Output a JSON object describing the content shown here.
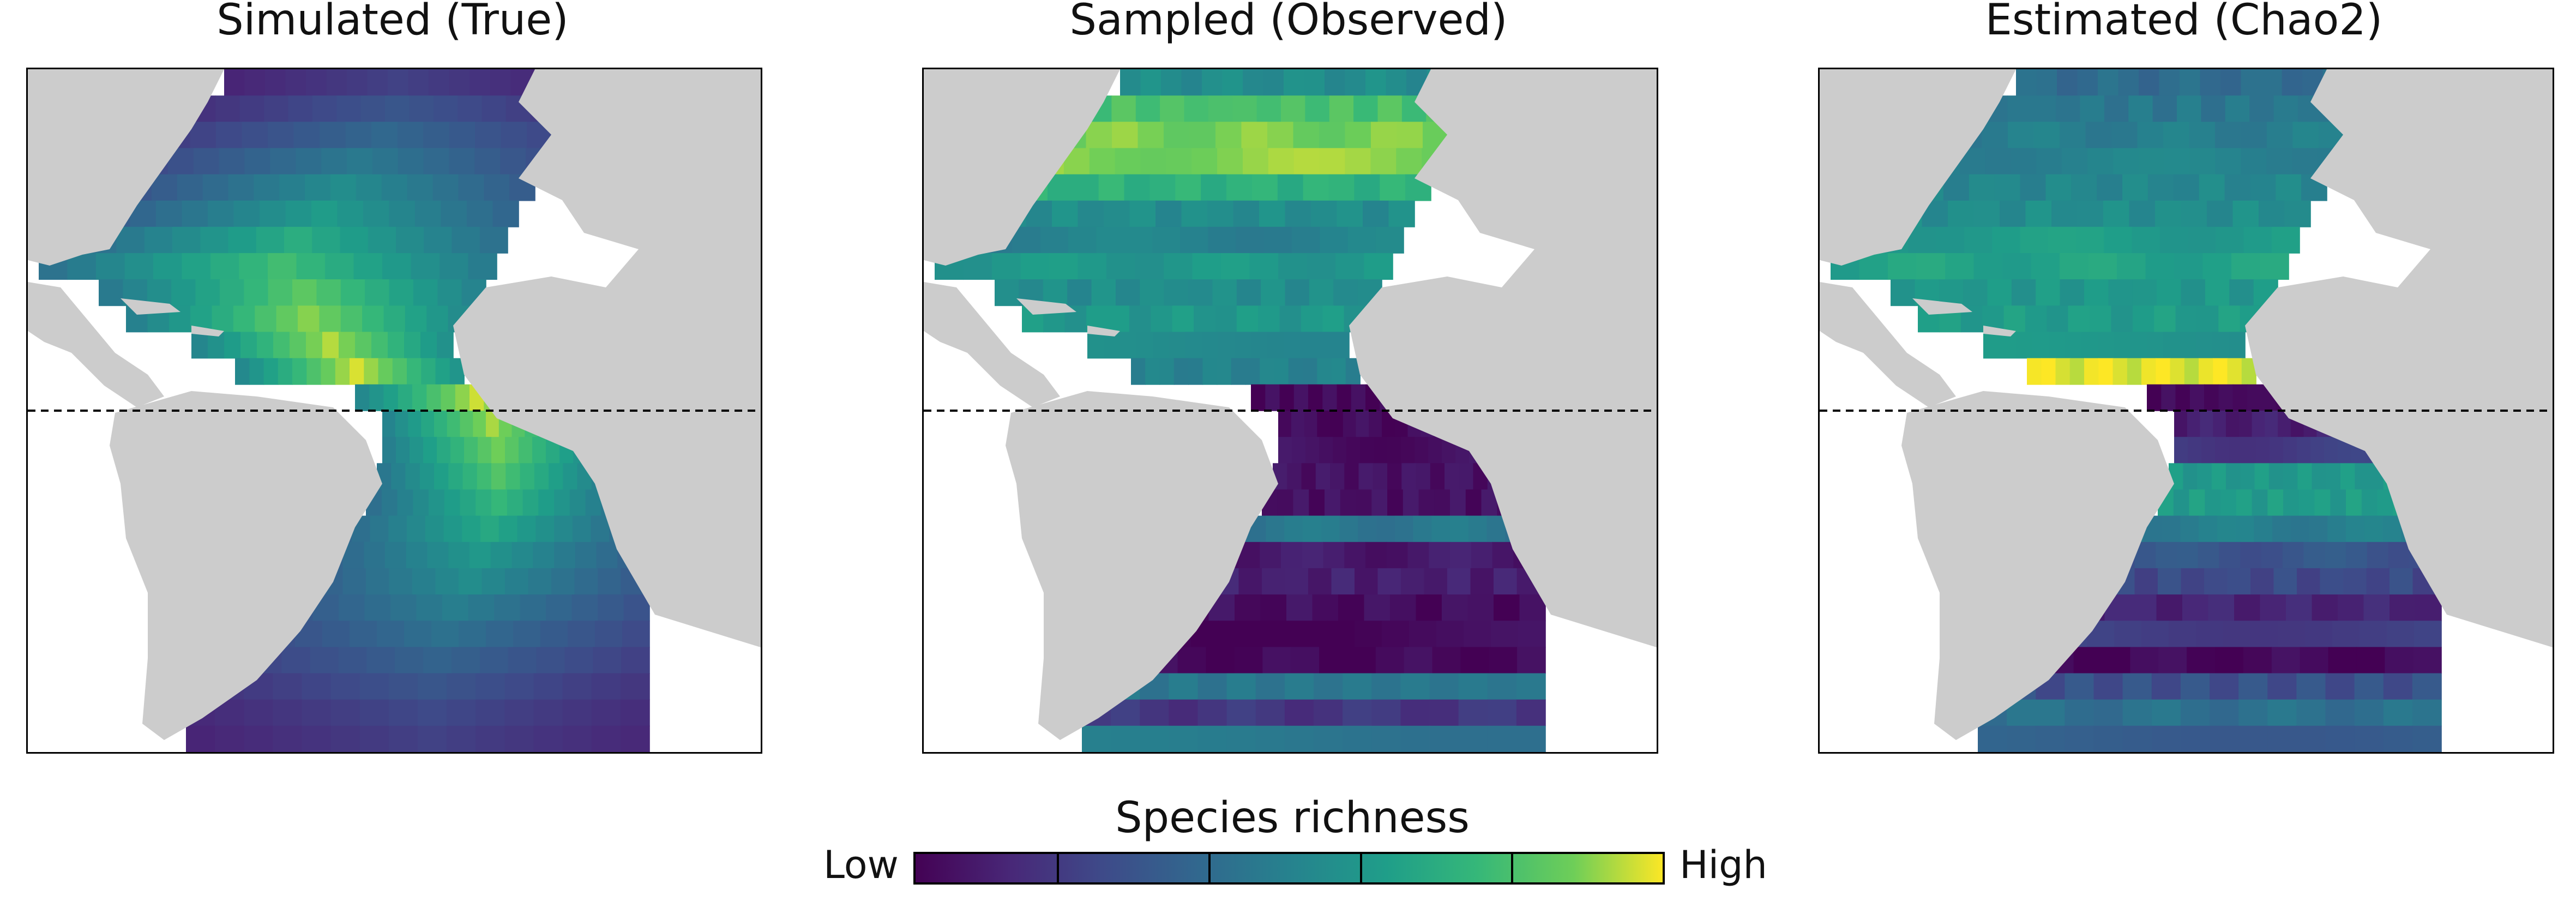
{
  "panels": [
    {
      "title": "Simulated (True)"
    },
    {
      "title": "Sampled (Observed)"
    },
    {
      "title": "Estimated (Chao2)"
    }
  ],
  "legend": {
    "title": "Species richness",
    "low_label": "Low",
    "high_label": "High",
    "colormap": "viridis"
  },
  "map": {
    "region": "Atlantic Ocean",
    "equator_line": "dashed",
    "land_color": "#cccccc",
    "ocean_color": "#ffffff",
    "grid_rows": 26
  },
  "chart_data": {
    "type": "heatmap",
    "series": [
      {
        "panel": "Simulated (True)",
        "row_profile": [
          0.22,
          0.3,
          0.38,
          0.46,
          0.55,
          0.62,
          0.7,
          0.78,
          0.84,
          0.9,
          0.94,
          0.97,
          0.96,
          0.93,
          0.88,
          0.82,
          0.75,
          0.68,
          0.6,
          0.55,
          0.48,
          0.42,
          0.36,
          0.3,
          0.25,
          0.22
        ]
      },
      {
        "panel": "Sampled (Observed)",
        "row_profile": [
          0.55,
          0.8,
          0.88,
          0.9,
          0.72,
          0.55,
          0.5,
          0.6,
          0.55,
          0.6,
          0.55,
          0.5,
          0.02,
          0.03,
          0.05,
          0.06,
          0.05,
          0.45,
          0.08,
          0.1,
          0.04,
          0.03,
          0.02,
          0.45,
          0.18,
          0.45
        ]
      },
      {
        "panel": "Estimated (Chao2)",
        "row_profile": [
          0.4,
          0.45,
          0.48,
          0.5,
          0.52,
          0.55,
          0.62,
          0.65,
          0.6,
          0.62,
          0.58,
          0.98,
          0.03,
          0.1,
          0.2,
          0.6,
          0.62,
          0.48,
          0.3,
          0.25,
          0.12,
          0.22,
          0.02,
          0.28,
          0.42,
          0.35
        ]
      }
    ]
  }
}
